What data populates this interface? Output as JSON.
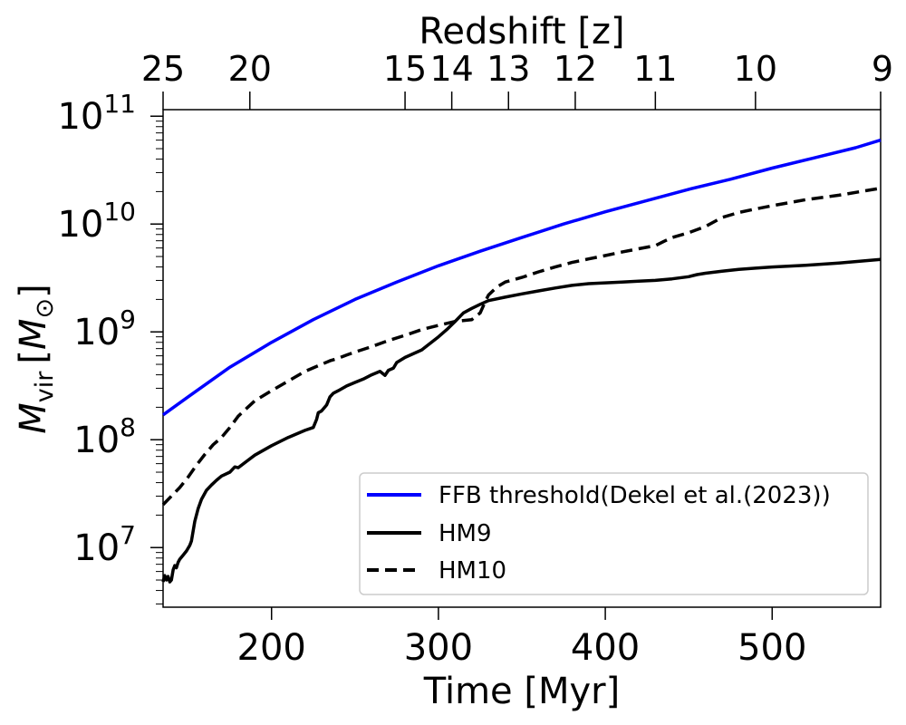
{
  "chart_data": {
    "type": "line",
    "xlabel": "Time [Myr]",
    "ylabel_main": "M",
    "ylabel_sub": "vir",
    "ylabel_unit_open": "[",
    "ylabel_unit_main": "M",
    "ylabel_unit_sub": "⊙",
    "ylabel_unit_close": "]",
    "top_xlabel": "Redshift [z]",
    "xlim": [
      135,
      565
    ],
    "ylim": [
      2800000.0,
      115000000000.0
    ],
    "yscale": "log",
    "x_ticks": [
      200,
      300,
      400,
      500
    ],
    "x_tick_labels": [
      "200",
      "300",
      "400",
      "500"
    ],
    "y_ticks": [
      10000000.0,
      100000000.0,
      1000000000.0,
      10000000000.0,
      100000000000.0
    ],
    "y_tick_bases": [
      "10",
      "10",
      "10",
      "10",
      "10"
    ],
    "y_tick_exps": [
      "7",
      "8",
      "9",
      "10",
      "11"
    ],
    "top_ticks": [
      {
        "label": "25",
        "time": 135
      },
      {
        "label": "20",
        "time": 187
      },
      {
        "label": "15",
        "time": 280
      },
      {
        "label": "14",
        "time": 308
      },
      {
        "label": "13",
        "time": 342
      },
      {
        "label": "12",
        "time": 382
      },
      {
        "label": "11",
        "time": 430
      },
      {
        "label": "10",
        "time": 490
      },
      {
        "label": "9",
        "time": 565
      }
    ],
    "legend_position": "lower-right",
    "series": [
      {
        "name": "FFB threshold(Dekel et al.(2023))",
        "color": "#0000ff",
        "style": "solid",
        "x": [
          135,
          150,
          175,
          200,
          225,
          250,
          275,
          300,
          325,
          350,
          375,
          400,
          425,
          450,
          475,
          500,
          525,
          550,
          565
        ],
        "y": [
          170000000.0,
          250000000.0,
          470000000.0,
          800000000.0,
          1300000000.0,
          2000000000.0,
          2900000000.0,
          4100000000.0,
          5600000000.0,
          7500000000.0,
          10000000000.0,
          13000000000.0,
          16500000000.0,
          21000000000.0,
          26000000000.0,
          33000000000.0,
          41000000000.0,
          51000000000.0,
          60000000000.0
        ]
      },
      {
        "name": "HM9",
        "color": "#000000",
        "style": "solid",
        "x": [
          135,
          136,
          137,
          138,
          139,
          140,
          141,
          142,
          143,
          144,
          145,
          147,
          149,
          151,
          152,
          154,
          156,
          158,
          161,
          164,
          167,
          170,
          175,
          178,
          180,
          185,
          190,
          200,
          210,
          220,
          225,
          227,
          228,
          230,
          233,
          235,
          237,
          240,
          245,
          250,
          255,
          260,
          265,
          268,
          270,
          273,
          275,
          280,
          290,
          300,
          305,
          310,
          315,
          320,
          325,
          330,
          340,
          350,
          360,
          370,
          380,
          390,
          400,
          410,
          420,
          430,
          440,
          450,
          455,
          460,
          470,
          480,
          490,
          500,
          520,
          540,
          565
        ],
        "y": [
          4800000.0,
          5500000.0,
          5000000.0,
          5400000.0,
          4800000.0,
          5000000.0,
          6200000.0,
          6800000.0,
          6500000.0,
          7300000.0,
          7800000.0,
          8500000.0,
          9300000.0,
          10500000.0,
          11500000.0,
          17500000.0,
          23000000.0,
          28000000.0,
          34000000.0,
          38000000.0,
          42000000.0,
          46000000.0,
          50000000.0,
          56000000.0,
          55000000.0,
          63000000.0,
          72000000.0,
          88000000.0,
          105000000.0,
          122000000.0,
          130000000.0,
          155000000.0,
          178000000.0,
          185000000.0,
          210000000.0,
          250000000.0,
          270000000.0,
          285000000.0,
          315000000.0,
          340000000.0,
          365000000.0,
          400000000.0,
          430000000.0,
          395000000.0,
          440000000.0,
          460000000.0,
          520000000.0,
          580000000.0,
          680000000.0,
          900000000.0,
          1050000000.0,
          1250000000.0,
          1500000000.0,
          1650000000.0,
          1800000000.0,
          1950000000.0,
          2100000000.0,
          2250000000.0,
          2400000000.0,
          2550000000.0,
          2700000000.0,
          2800000000.0,
          2850000000.0,
          2900000000.0,
          2950000000.0,
          3000000000.0,
          3100000000.0,
          3250000000.0,
          3400000000.0,
          3500000000.0,
          3650000000.0,
          3800000000.0,
          3900000000.0,
          4000000000.0,
          4150000000.0,
          4350000000.0,
          4700000000.0
        ]
      },
      {
        "name": "HM10",
        "color": "#000000",
        "style": "dashed",
        "x": [
          135,
          140,
          145,
          150,
          155,
          160,
          165,
          170,
          175,
          180,
          185,
          190,
          200,
          210,
          220,
          230,
          235,
          240,
          245,
          250,
          260,
          270,
          280,
          290,
          300,
          310,
          320,
          325,
          328,
          330,
          335,
          340,
          350,
          360,
          370,
          380,
          390,
          400,
          410,
          420,
          430,
          435,
          440,
          450,
          460,
          470,
          480,
          490,
          500,
          520,
          540,
          565
        ],
        "y": [
          25000000.0,
          30000000.0,
          36000000.0,
          45000000.0,
          58000000.0,
          73000000.0,
          90000000.0,
          105000000.0,
          130000000.0,
          165000000.0,
          195000000.0,
          230000000.0,
          285000000.0,
          350000000.0,
          430000000.0,
          500000000.0,
          540000000.0,
          570000000.0,
          610000000.0,
          650000000.0,
          730000000.0,
          830000000.0,
          930000000.0,
          1050000000.0,
          1150000000.0,
          1250000000.0,
          1300000000.0,
          1500000000.0,
          1900000000.0,
          2200000000.0,
          2600000000.0,
          2900000000.0,
          3200000000.0,
          3600000000.0,
          4000000000.0,
          4400000000.0,
          4750000000.0,
          5100000000.0,
          5500000000.0,
          5900000000.0,
          6300000000.0,
          6900000000.0,
          7500000000.0,
          8300000000.0,
          9500000000.0,
          11500000000.0,
          12800000000.0,
          13800000000.0,
          14800000000.0,
          16800000000.0,
          18500000000.0,
          21500000000.0
        ]
      }
    ]
  }
}
